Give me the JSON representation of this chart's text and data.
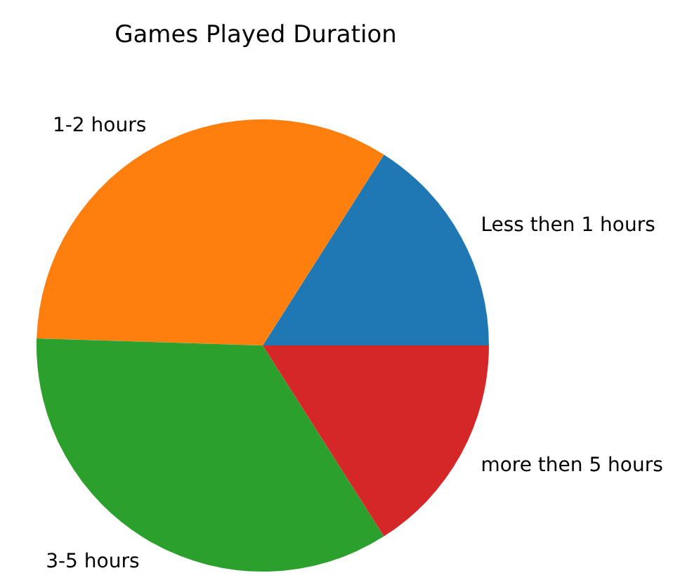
{
  "chart_data": {
    "type": "pie",
    "title": "Games Played Duration",
    "categories": [
      "Less then 1 hours",
      "1-2 hours",
      "3-5 hours",
      "more then 5 hours"
    ],
    "values": [
      16,
      33.5,
      34.5,
      16
    ],
    "colors": [
      "#1f77b4",
      "#ff7f0e",
      "#2ca02c",
      "#d62728"
    ],
    "legend": false
  }
}
